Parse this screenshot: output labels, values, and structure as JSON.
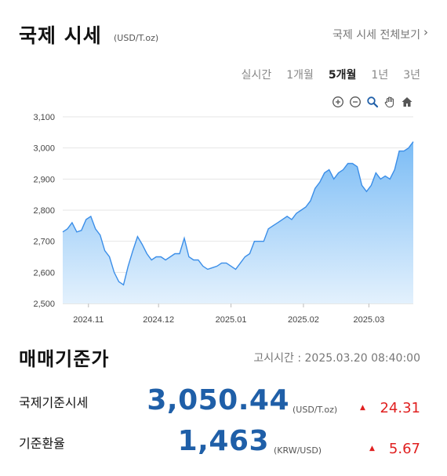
{
  "header": {
    "title": "국제 시세",
    "unit": "(USD/T.oz)",
    "view_all": "국제 시세 전체보기",
    "view_all_chevron": "›"
  },
  "periods": [
    {
      "label": "실시간",
      "active": false
    },
    {
      "label": "1개월",
      "active": false
    },
    {
      "label": "5개월",
      "active": true
    },
    {
      "label": "1년",
      "active": false
    },
    {
      "label": "3년",
      "active": false
    }
  ],
  "toolbar": [
    "zoom-in-icon",
    "zoom-out-icon",
    "magnifier-icon",
    "pan-hand-icon",
    "home-icon"
  ],
  "colors": {
    "accent": "#1f5fa8",
    "line": "#3b8ee8",
    "up": "#e02020"
  },
  "chart_data": {
    "type": "area",
    "ylim": [
      2500,
      3100
    ],
    "yticks": [
      "2,500",
      "2,600",
      "2,700",
      "2,800",
      "2,900",
      "3,000",
      "3,100"
    ],
    "xticks": [
      {
        "label": "2024.11",
        "date": "2024-11-01"
      },
      {
        "label": "2024.12",
        "date": "2024-12-01"
      },
      {
        "label": "2025.01",
        "date": "2025-01-01"
      },
      {
        "label": "2025.02",
        "date": "2025-02-01"
      },
      {
        "label": "2025.03",
        "date": "2025-03-01"
      }
    ],
    "grid": true,
    "x": [
      "2024-10-21",
      "2024-10-23",
      "2024-10-25",
      "2024-10-27",
      "2024-10-29",
      "2024-10-31",
      "2024-11-02",
      "2024-11-04",
      "2024-11-06",
      "2024-11-08",
      "2024-11-10",
      "2024-11-12",
      "2024-11-14",
      "2024-11-16",
      "2024-11-18",
      "2024-11-20",
      "2024-11-22",
      "2024-11-24",
      "2024-11-26",
      "2024-11-28",
      "2024-11-30",
      "2024-12-02",
      "2024-12-04",
      "2024-12-06",
      "2024-12-08",
      "2024-12-10",
      "2024-12-12",
      "2024-12-14",
      "2024-12-16",
      "2024-12-18",
      "2024-12-20",
      "2024-12-22",
      "2024-12-24",
      "2024-12-26",
      "2024-12-28",
      "2024-12-30",
      "2025-01-01",
      "2025-01-03",
      "2025-01-05",
      "2025-01-07",
      "2025-01-09",
      "2025-01-11",
      "2025-01-13",
      "2025-01-15",
      "2025-01-17",
      "2025-01-19",
      "2025-01-21",
      "2025-01-23",
      "2025-01-25",
      "2025-01-27",
      "2025-01-29",
      "2025-01-31",
      "2025-02-02",
      "2025-02-04",
      "2025-02-06",
      "2025-02-08",
      "2025-02-10",
      "2025-02-12",
      "2025-02-14",
      "2025-02-16",
      "2025-02-18",
      "2025-02-20",
      "2025-02-22",
      "2025-02-24",
      "2025-02-26",
      "2025-02-28",
      "2025-03-02",
      "2025-03-04",
      "2025-03-06",
      "2025-03-08",
      "2025-03-10",
      "2025-03-12",
      "2025-03-14",
      "2025-03-16",
      "2025-03-18",
      "2025-03-20"
    ],
    "values": [
      2730,
      2740,
      2760,
      2730,
      2735,
      2770,
      2780,
      2740,
      2720,
      2670,
      2650,
      2600,
      2570,
      2560,
      2620,
      2670,
      2715,
      2690,
      2660,
      2640,
      2650,
      2650,
      2640,
      2650,
      2660,
      2660,
      2710,
      2650,
      2640,
      2640,
      2620,
      2610,
      2615,
      2620,
      2630,
      2630,
      2620,
      2610,
      2630,
      2650,
      2660,
      2700,
      2700,
      2700,
      2740,
      2750,
      2760,
      2770,
      2780,
      2770,
      2790,
      2800,
      2810,
      2830,
      2870,
      2890,
      2920,
      2930,
      2900,
      2920,
      2930,
      2950,
      2950,
      2940,
      2880,
      2860,
      2880,
      2920,
      2900,
      2910,
      2900,
      2930,
      2990,
      2990,
      3000,
      3020
    ]
  },
  "summary": {
    "title": "매매기준가",
    "notice_time": "고시시간 : 2025.03.20 08:40:00"
  },
  "rates": [
    {
      "label": "국제기준시세",
      "value": "3,050.44",
      "unit": "(USD/T.oz)",
      "arrow": "▲",
      "change": "24.31"
    },
    {
      "label": "기준환율",
      "value": "1,463",
      "unit": "(KRW/USD)",
      "arrow": "▲",
      "change": "5.67"
    }
  ]
}
